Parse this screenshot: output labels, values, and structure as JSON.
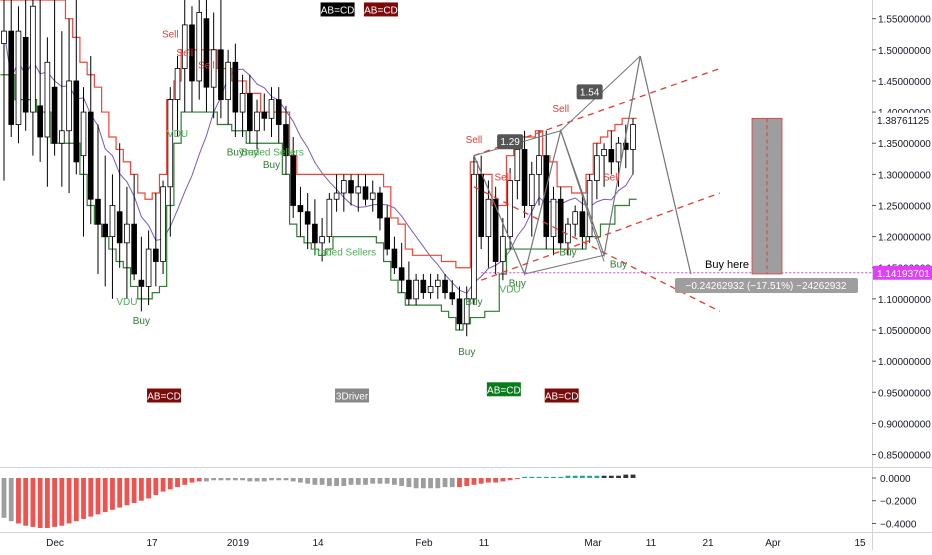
{
  "chart_data": [
    {
      "type": "candlestick",
      "instrument_note": "",
      "xaxis_labels": [
        "Dec",
        "17",
        "2019",
        "14",
        "Feb",
        "11",
        "Mar",
        "11",
        "21",
        "Apr",
        "15"
      ],
      "yaxis_ticks": [
        "1.55000000",
        "1.50000000",
        "1.45000000",
        "1.40000000",
        "1.35000000",
        "1.30000000",
        "1.25000000",
        "1.20000000",
        "1.15000000",
        "1.10000000",
        "1.05000000",
        "1.00000000",
        "0.95000000",
        "0.90000000",
        "0.85000000"
      ],
      "ylim": [
        0.83,
        1.58
      ],
      "current_price_label": "1.38761125",
      "buy_line_label": "1.14193701",
      "candles": [
        [
          1.51,
          1.58,
          1.29,
          1.53
        ],
        [
          1.53,
          1.58,
          1.36,
          1.38
        ],
        [
          1.38,
          1.57,
          1.35,
          1.53
        ],
        [
          1.52,
          1.58,
          1.37,
          1.4
        ],
        [
          1.4,
          1.58,
          1.33,
          1.57
        ],
        [
          1.41,
          1.58,
          1.32,
          1.36
        ],
        [
          1.36,
          1.52,
          1.28,
          1.48
        ],
        [
          1.44,
          1.58,
          1.33,
          1.35
        ],
        [
          1.35,
          1.53,
          1.28,
          1.37
        ],
        [
          1.37,
          1.55,
          1.27,
          1.45
        ],
        [
          1.45,
          1.58,
          1.3,
          1.32
        ],
        [
          1.33,
          1.44,
          1.2,
          1.4
        ],
        [
          1.4,
          1.49,
          1.22,
          1.26
        ],
        [
          1.26,
          1.38,
          1.14,
          1.22
        ],
        [
          1.22,
          1.33,
          1.12,
          1.2
        ],
        [
          1.2,
          1.3,
          1.1,
          1.25
        ],
        [
          1.24,
          1.35,
          1.15,
          1.19
        ],
        [
          1.19,
          1.28,
          1.1,
          1.22
        ],
        [
          1.22,
          1.3,
          1.13,
          1.14
        ],
        [
          1.13,
          1.2,
          1.08,
          1.12
        ],
        [
          1.12,
          1.21,
          1.09,
          1.18
        ],
        [
          1.18,
          1.27,
          1.12,
          1.16
        ],
        [
          1.16,
          1.29,
          1.14,
          1.28
        ],
        [
          1.28,
          1.44,
          1.2,
          1.42
        ],
        [
          1.42,
          1.49,
          1.36,
          1.47
        ],
        [
          1.47,
          1.58,
          1.4,
          1.54
        ],
        [
          1.54,
          1.57,
          1.4,
          1.45
        ],
        [
          1.45,
          1.58,
          1.42,
          1.56
        ],
        [
          1.55,
          1.58,
          1.4,
          1.44
        ],
        [
          1.44,
          1.56,
          1.39,
          1.5
        ],
        [
          1.5,
          1.58,
          1.39,
          1.42
        ],
        [
          1.42,
          1.5,
          1.38,
          1.48
        ],
        [
          1.48,
          1.51,
          1.36,
          1.4
        ],
        [
          1.4,
          1.46,
          1.36,
          1.43
        ],
        [
          1.43,
          1.46,
          1.35,
          1.37
        ],
        [
          1.37,
          1.42,
          1.34,
          1.4
        ],
        [
          1.4,
          1.43,
          1.37,
          1.39
        ],
        [
          1.39,
          1.44,
          1.36,
          1.42
        ],
        [
          1.42,
          1.44,
          1.35,
          1.38
        ],
        [
          1.38,
          1.41,
          1.3,
          1.33
        ],
        [
          1.33,
          1.36,
          1.23,
          1.25
        ],
        [
          1.25,
          1.28,
          1.2,
          1.24
        ],
        [
          1.24,
          1.27,
          1.18,
          1.22
        ],
        [
          1.22,
          1.26,
          1.17,
          1.19
        ],
        [
          1.19,
          1.23,
          1.16,
          1.2
        ],
        [
          1.2,
          1.27,
          1.19,
          1.26
        ],
        [
          1.26,
          1.3,
          1.24,
          1.27
        ],
        [
          1.27,
          1.3,
          1.24,
          1.29
        ],
        [
          1.29,
          1.3,
          1.25,
          1.27
        ],
        [
          1.27,
          1.3,
          1.24,
          1.28
        ],
        [
          1.28,
          1.3,
          1.25,
          1.26
        ],
        [
          1.26,
          1.29,
          1.24,
          1.27
        ],
        [
          1.27,
          1.28,
          1.21,
          1.23
        ],
        [
          1.23,
          1.25,
          1.17,
          1.18
        ],
        [
          1.18,
          1.2,
          1.14,
          1.15
        ],
        [
          1.15,
          1.19,
          1.11,
          1.13
        ],
        [
          1.13,
          1.16,
          1.09,
          1.1
        ],
        [
          1.1,
          1.14,
          1.09,
          1.13
        ],
        [
          1.13,
          1.14,
          1.1,
          1.11
        ],
        [
          1.11,
          1.14,
          1.1,
          1.12
        ],
        [
          1.12,
          1.14,
          1.1,
          1.13
        ],
        [
          1.13,
          1.14,
          1.1,
          1.11
        ],
        [
          1.11,
          1.13,
          1.09,
          1.1
        ],
        [
          1.1,
          1.12,
          1.05,
          1.06
        ],
        [
          1.06,
          1.12,
          1.04,
          1.1
        ],
        [
          1.1,
          1.33,
          1.09,
          1.3
        ],
        [
          1.3,
          1.33,
          1.18,
          1.2
        ],
        [
          1.2,
          1.29,
          1.15,
          1.26
        ],
        [
          1.26,
          1.28,
          1.14,
          1.16
        ],
        [
          1.16,
          1.23,
          1.13,
          1.2
        ],
        [
          1.2,
          1.31,
          1.18,
          1.29
        ],
        [
          1.29,
          1.36,
          1.26,
          1.34
        ],
        [
          1.34,
          1.37,
          1.23,
          1.25
        ],
        [
          1.25,
          1.32,
          1.2,
          1.3
        ],
        [
          1.3,
          1.37,
          1.25,
          1.33
        ],
        [
          1.33,
          1.37,
          1.18,
          1.2
        ],
        [
          1.2,
          1.28,
          1.17,
          1.26
        ],
        [
          1.26,
          1.28,
          1.18,
          1.19
        ],
        [
          1.19,
          1.23,
          1.17,
          1.22
        ],
        [
          1.22,
          1.25,
          1.2,
          1.24
        ],
        [
          1.24,
          1.27,
          1.18,
          1.2
        ],
        [
          1.2,
          1.3,
          1.19,
          1.29
        ],
        [
          1.29,
          1.35,
          1.26,
          1.33
        ],
        [
          1.33,
          1.35,
          1.28,
          1.34
        ],
        [
          1.34,
          1.37,
          1.3,
          1.32
        ],
        [
          1.32,
          1.36,
          1.28,
          1.35
        ],
        [
          1.35,
          1.38,
          1.31,
          1.34
        ],
        [
          1.34,
          1.39,
          1.3,
          1.38
        ]
      ],
      "supertrend_upper": [
        1.58,
        1.58,
        1.58,
        1.58,
        1.58,
        1.58,
        1.58,
        1.58,
        1.58,
        1.55,
        1.52,
        1.48,
        1.46,
        1.44,
        1.4,
        1.36,
        1.34,
        1.32,
        1.3,
        1.27,
        1.26,
        1.27,
        1.3,
        1.42,
        1.45,
        1.5,
        1.5,
        1.5,
        1.5,
        1.5,
        1.47,
        1.47,
        1.45,
        1.45,
        1.43,
        1.43,
        1.4,
        1.4,
        1.4,
        1.4,
        1.33,
        1.3,
        1.3,
        1.3,
        1.3,
        1.3,
        1.3,
        1.3,
        1.3,
        1.3,
        1.3,
        1.3,
        1.3,
        1.28,
        1.23,
        1.22,
        1.18,
        1.17,
        1.17,
        1.17,
        1.17,
        1.16,
        1.16,
        1.15,
        1.15,
        1.32,
        1.3,
        1.3,
        1.25,
        1.25,
        1.33,
        1.36,
        1.36,
        1.36,
        1.37,
        1.33,
        1.32,
        1.28,
        1.28,
        1.27,
        1.27,
        1.3,
        1.35,
        1.36,
        1.37,
        1.38,
        1.39,
        1.39
      ],
      "supertrend_lower": [
        1.46,
        1.46,
        1.42,
        1.42,
        1.42,
        1.4,
        1.4,
        1.35,
        1.35,
        1.35,
        1.35,
        1.3,
        1.25,
        1.22,
        1.2,
        1.18,
        1.16,
        1.15,
        1.12,
        1.1,
        1.1,
        1.11,
        1.12,
        1.25,
        1.35,
        1.4,
        1.4,
        1.4,
        1.4,
        1.4,
        1.38,
        1.38,
        1.37,
        1.37,
        1.35,
        1.35,
        1.35,
        1.35,
        1.35,
        1.3,
        1.22,
        1.2,
        1.19,
        1.18,
        1.17,
        1.18,
        1.2,
        1.2,
        1.2,
        1.2,
        1.2,
        1.2,
        1.19,
        1.16,
        1.13,
        1.11,
        1.09,
        1.09,
        1.09,
        1.09,
        1.09,
        1.08,
        1.07,
        1.05,
        1.06,
        1.07,
        1.07,
        1.08,
        1.08,
        1.14,
        1.18,
        1.18,
        1.18,
        1.18,
        1.18,
        1.18,
        1.18,
        1.18,
        1.18,
        1.18,
        1.18,
        1.2,
        1.2,
        1.22,
        1.22,
        1.25,
        1.25,
        1.26
      ],
      "signals": [
        {
          "text": "Sell",
          "type": "sell",
          "bar": 23,
          "price": 1.52
        },
        {
          "text": "Sell",
          "type": "sell",
          "bar": 25,
          "price": 1.49
        },
        {
          "text": "Sell",
          "type": "sell",
          "bar": 28,
          "price": 1.47
        },
        {
          "text": "Buy",
          "type": "buy",
          "bar": 19,
          "price": 1.06
        },
        {
          "text": "Buy",
          "type": "buy",
          "bar": 32,
          "price": 1.33
        },
        {
          "text": "Buy",
          "type": "buy",
          "bar": 34,
          "price": 1.33
        },
        {
          "text": "Buy",
          "type": "buy",
          "bar": 37,
          "price": 1.31
        },
        {
          "text": "Sell",
          "type": "sell",
          "bar": 65,
          "price": 1.35
        },
        {
          "text": "Sell",
          "type": "sell",
          "bar": 69,
          "price": 1.29
        },
        {
          "text": "Buy",
          "type": "buy",
          "bar": 64,
          "price": 1.01
        },
        {
          "text": "Buy",
          "type": "buy",
          "bar": 65,
          "price": 1.09
        },
        {
          "text": "Buy",
          "type": "buy",
          "bar": 71,
          "price": 1.12
        },
        {
          "text": "Sell",
          "type": "sell",
          "bar": 77,
          "price": 1.4
        },
        {
          "text": "Buy",
          "type": "buy",
          "bar": 78,
          "price": 1.17
        },
        {
          "text": "Sell",
          "type": "sell",
          "bar": 84,
          "price": 1.29
        },
        {
          "text": "Buy",
          "type": "buy",
          "bar": 85,
          "price": 1.15
        }
      ],
      "labels": [
        {
          "text": "VDU",
          "bar": 24,
          "price": 1.36,
          "color": "#4caf50"
        },
        {
          "text": "VDU",
          "bar": 17,
          "price": 1.09,
          "color": "#4caf50"
        },
        {
          "text": "VDU",
          "bar": 70,
          "price": 1.11,
          "color": "#4caf50"
        },
        {
          "text": "Traded Sellers",
          "bar": 37,
          "price": 1.33,
          "color": "#4caf50"
        },
        {
          "text": "Traded Sellers",
          "bar": 47,
          "price": 1.17,
          "color": "#4caf50"
        }
      ],
      "boxes": [
        {
          "text": "AB=CD",
          "bg": "#000000",
          "bar": 46,
          "price": 1.56
        },
        {
          "text": "AB=CD",
          "bg": "#7b0a0a",
          "bar": 52,
          "price": 1.56
        },
        {
          "text": "AB=CD",
          "bg": "#7b0a0a",
          "bar": 22,
          "price": 0.94
        },
        {
          "text": "3Driver",
          "bg": "#888888",
          "bar": 48,
          "price": 0.94
        },
        {
          "text": "AB=CD",
          "bg": "#0a7b1a",
          "bar": 69,
          "price": 0.95
        },
        {
          "text": "AB=CD",
          "bg": "#7b0a0a",
          "bar": 77,
          "price": 0.94
        }
      ],
      "pattern_ratios": [
        "1.29",
        "1.54"
      ],
      "annotation_buy": "Buy here",
      "measure_label": "−0.24262932 (−17.51%) −24262932",
      "oscillator": {
        "yaxis_ticks": [
          "0.0000",
          "−0.2000",
          "−0.4000"
        ],
        "values": [
          -0.35,
          -0.38,
          -0.4,
          -0.42,
          -0.43,
          -0.44,
          -0.44,
          -0.43,
          -0.42,
          -0.4,
          -0.38,
          -0.36,
          -0.34,
          -0.32,
          -0.3,
          -0.28,
          -0.26,
          -0.24,
          -0.22,
          -0.2,
          -0.18,
          -0.15,
          -0.12,
          -0.1,
          -0.08,
          -0.06,
          -0.04,
          -0.03,
          -0.03,
          -0.02,
          -0.02,
          -0.02,
          -0.02,
          -0.02,
          -0.03,
          -0.03,
          -0.03,
          -0.02,
          -0.02,
          -0.02,
          -0.03,
          -0.04,
          -0.05,
          -0.06,
          -0.06,
          -0.07,
          -0.07,
          -0.07,
          -0.06,
          -0.06,
          -0.06,
          -0.05,
          -0.05,
          -0.05,
          -0.06,
          -0.07,
          -0.08,
          -0.09,
          -0.09,
          -0.09,
          -0.09,
          -0.08,
          -0.08,
          -0.08,
          -0.07,
          -0.06,
          -0.05,
          -0.04,
          -0.04,
          -0.03,
          -0.02,
          -0.01,
          0.01,
          0.01,
          0.01,
          0.01,
          0.01,
          0.01,
          0.02,
          0.02,
          0.02,
          0.02,
          0.02,
          0.02,
          0.02,
          0.02,
          0.03,
          0.03
        ],
        "colors": {
          "neg_bright": "#ef5350",
          "neg_fade": "#9e9e9e",
          "pos_bright": "#26a69a",
          "pos_dark": "#333333"
        }
      },
      "colors": {
        "up": "#ffffff",
        "down": "#000000",
        "upper": "#f44336",
        "lower": "#2e7d32",
        "ma": "#7e57c2",
        "dashed": "#e53935",
        "pattern": "#757575",
        "buy_line": "#e040fb",
        "measure_bg": "#9e9e9e"
      }
    }
  ]
}
